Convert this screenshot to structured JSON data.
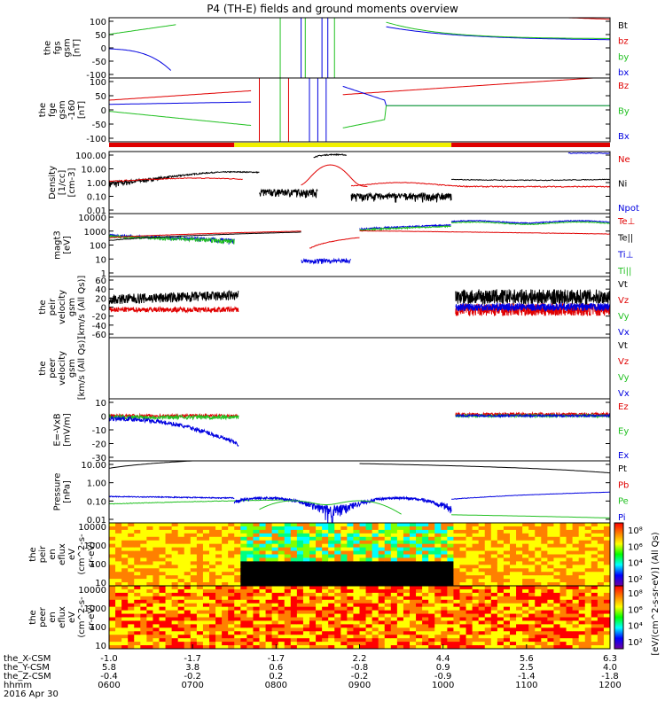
{
  "chart_data": {
    "type": "line",
    "title": "P4 (TH-E) fields and ground moments overview",
    "x_time_labels": [
      "0600",
      "0700",
      "0800",
      "0900",
      "1000",
      "1100",
      "1200"
    ],
    "x_time_hours": [
      6,
      7,
      8,
      9,
      10,
      11,
      12
    ],
    "x_range_hours": [
      6,
      12
    ],
    "footer": {
      "rows": [
        {
          "name": "the_X-CSM",
          "values": [
            "-1.0",
            "-1.7",
            "-1.7",
            "2.2",
            "4.4",
            "5.6",
            "6.3"
          ]
        },
        {
          "name": "the_Y-CSM",
          "values": [
            "5.8",
            "3.8",
            "0.6",
            "-0.8",
            "0.9",
            "2.5",
            "4.0"
          ]
        },
        {
          "name": "the_Z-CSM",
          "values": [
            "-0.4",
            "-0.2",
            "0.2",
            "-0.2",
            "-0.9",
            "-1.4",
            "-1.8"
          ]
        },
        {
          "name": "hhmm",
          "values": []
        }
      ],
      "date": "2016 Apr 30"
    },
    "panels": [
      {
        "id": "fgs",
        "ylabel_lines": [
          "the",
          "fgs",
          "gsm",
          "[nT]"
        ],
        "yticks": [
          "100",
          "50",
          "0",
          "-50",
          "-100"
        ],
        "ylim": [
          -100,
          100
        ],
        "legend": [
          {
            "label": "Bt",
            "color": "#000000"
          },
          {
            "label": "bz",
            "color": "#e00000"
          },
          {
            "label": "by",
            "color": "#20c020"
          },
          {
            "label": "bx",
            "color": "#0000e0"
          }
        ]
      },
      {
        "id": "fge",
        "ylabel_lines": [
          "the",
          "fge",
          "gsm",
          "-160",
          "[nT]"
        ],
        "yticks": [
          "100",
          "50",
          "0",
          "-50",
          "-100"
        ],
        "ylim": [
          -130,
          100
        ],
        "legend": [
          {
            "label": "Bz",
            "color": "#e00000"
          },
          {
            "label": "By",
            "color": "#20c020"
          },
          {
            "label": "Bx",
            "color": "#0000e0"
          }
        ]
      },
      {
        "id": "density",
        "ylabel_lines": [
          "Density",
          "[1/cc]",
          "[cm-3]"
        ],
        "yticks": [
          "100.00",
          "10.00",
          "1.00",
          "0.10",
          "0.01"
        ],
        "ylim": [
          0.005,
          200
        ],
        "log": true,
        "legend": [
          {
            "label": "Ne",
            "color": "#e00000"
          },
          {
            "label": "Ni",
            "color": "#000000"
          },
          {
            "label": "Npot",
            "color": "#0000e0"
          }
        ]
      },
      {
        "id": "temp",
        "ylabel_lines": [
          "magt3",
          "[eV]"
        ],
        "yticks": [
          "10000",
          "1000",
          "100",
          "10",
          "1"
        ],
        "ylim": [
          1,
          10000
        ],
        "log": true,
        "legend": [
          {
            "label": "Te⊥",
            "color": "#e00000"
          },
          {
            "label": "Te||",
            "color": "#000000"
          },
          {
            "label": "Ti⊥",
            "color": "#0000e0"
          },
          {
            "label": "Ti||",
            "color": "#20c020"
          }
        ]
      },
      {
        "id": "peir_vel",
        "ylabel_lines": [
          "the",
          "peir",
          "velocity",
          "gsm",
          "[km/s (All Qs)]"
        ],
        "yticks": [
          "60",
          "40",
          "20",
          "0",
          "-20",
          "-40",
          "-60"
        ],
        "ylim": [
          -60,
          60
        ],
        "legend": [
          {
            "label": "Vt",
            "color": "#000000"
          },
          {
            "label": "Vz",
            "color": "#e00000"
          },
          {
            "label": "Vy",
            "color": "#20c020"
          },
          {
            "label": "Vx",
            "color": "#0000e0"
          }
        ]
      },
      {
        "id": "peer_vel",
        "ylabel_lines": [
          "the",
          "peer",
          "velocity",
          "gsm",
          "[km/s (All Qs)]"
        ],
        "yticks": [],
        "ylim": [
          -60,
          60
        ],
        "legend": [
          {
            "label": "Vt",
            "color": "#000000"
          },
          {
            "label": "Vz",
            "color": "#e00000"
          },
          {
            "label": "Vy",
            "color": "#20c020"
          },
          {
            "label": "Vx",
            "color": "#0000e0"
          }
        ]
      },
      {
        "id": "efield",
        "ylabel_lines": [
          "E=-VxB",
          "[mV/m]"
        ],
        "yticks": [
          "10",
          "0",
          "-10",
          "-20",
          "-30"
        ],
        "ylim": [
          -32,
          12
        ],
        "legend": [
          {
            "label": "Ez",
            "color": "#e00000"
          },
          {
            "label": "Ey",
            "color": "#20c020"
          },
          {
            "label": "Ex",
            "color": "#0000e0"
          }
        ]
      },
      {
        "id": "pressure",
        "ylabel_lines": [
          "Pressure",
          "[nPa]"
        ],
        "yticks": [
          "10.00",
          "1.00",
          "0.10",
          "0.01"
        ],
        "ylim": [
          0.003,
          30
        ],
        "log": true,
        "legend": [
          {
            "label": "Pt",
            "color": "#000000"
          },
          {
            "label": "Pb",
            "color": "#e00000"
          },
          {
            "label": "Pe",
            "color": "#20c020"
          },
          {
            "label": "Pi",
            "color": "#0000e0"
          }
        ]
      },
      {
        "id": "peir_spec",
        "type": "heatmap",
        "ylabel_lines": [
          "the",
          "peir",
          "en",
          "eflux",
          "eV",
          "(cm^2-s-",
          "sr-eV)"
        ],
        "yticks": [
          "10000",
          "1000",
          "100",
          "10"
        ]
      },
      {
        "id": "peer_spec",
        "type": "heatmap",
        "ylabel_lines": [
          "the",
          "peer",
          "en",
          "eflux",
          "eV",
          "(cm^2-s-",
          "sr-eV)"
        ],
        "yticks": [
          "10000",
          "1000",
          "100",
          "10"
        ]
      }
    ],
    "colorbar1": {
      "ticks": [
        "10⁸",
        "10⁶",
        "10⁴",
        "10²"
      ]
    },
    "colorbar2": {
      "ticks": [
        "10⁸",
        "10⁶",
        "10⁴",
        "10²"
      ]
    },
    "colorbar_label": "[eV/(cm^2-s-sr-eV)] (All Qs)",
    "colors": {
      "red": "#e00000",
      "green": "#20c020",
      "blue": "#0000e0",
      "black": "#000000",
      "yellow": "#f0f000"
    }
  }
}
